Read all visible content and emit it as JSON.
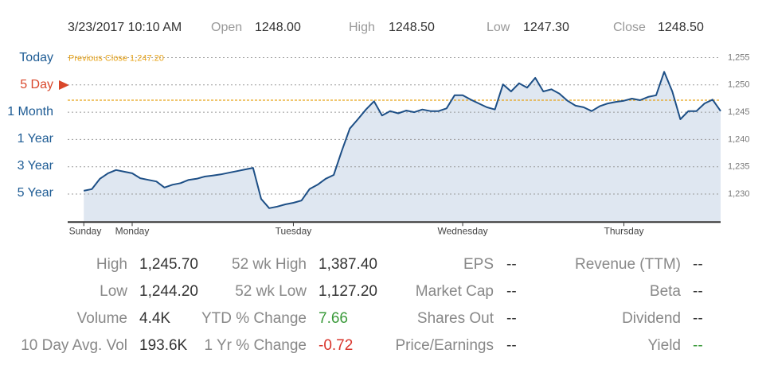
{
  "header": {
    "timestamp": "3/23/2017 10:10 AM",
    "fields": [
      {
        "label": "Open",
        "value": "1248.00"
      },
      {
        "label": "High",
        "value": "1248.50"
      },
      {
        "label": "Low",
        "value": "1247.30"
      },
      {
        "label": "Close",
        "value": "1248.50"
      }
    ]
  },
  "ranges": [
    "Today",
    "5 Day",
    "1 Month",
    "1 Year",
    "3 Year",
    "5 Year"
  ],
  "active_range": 1,
  "active_color": "#d9472b",
  "chart_data": {
    "type": "line",
    "color": "#1d4f86",
    "fill": "#dfe7f1",
    "x": [
      0,
      1,
      2,
      3,
      4,
      5,
      6,
      7,
      8,
      9,
      10,
      11,
      12,
      13,
      14,
      15,
      16,
      17,
      18,
      19,
      20,
      21,
      22,
      23,
      24,
      25,
      26,
      27,
      28,
      29,
      30,
      31,
      32,
      33,
      34,
      35,
      36,
      37,
      38,
      39,
      40,
      41,
      42,
      43,
      44,
      45,
      46,
      47,
      48,
      49,
      50,
      51,
      52,
      53,
      54,
      55,
      56,
      57,
      58,
      59,
      60,
      61,
      62,
      63,
      64,
      65,
      66,
      67,
      68,
      69,
      70,
      71,
      72,
      73,
      74,
      75,
      76,
      77,
      78,
      79
    ],
    "values": [
      1230.6,
      1230.9,
      1232.8,
      1233.8,
      1234.4,
      1234.1,
      1233.8,
      1232.9,
      1232.6,
      1232.3,
      1231.2,
      1231.7,
      1232.0,
      1232.6,
      1232.8,
      1233.2,
      1233.4,
      1233.6,
      1233.9,
      1234.2,
      1234.5,
      1234.8,
      1229.1,
      1227.4,
      1227.7,
      1228.1,
      1228.4,
      1228.8,
      1230.9,
      1231.7,
      1232.8,
      1233.5,
      1237.9,
      1242.0,
      1243.7,
      1245.5,
      1247.0,
      1244.4,
      1245.2,
      1244.8,
      1245.3,
      1245.0,
      1245.5,
      1245.2,
      1245.2,
      1245.7,
      1248.1,
      1248.1,
      1247.3,
      1246.6,
      1245.9,
      1245.5,
      1250.1,
      1248.8,
      1250.3,
      1249.5,
      1251.3,
      1248.8,
      1249.2,
      1248.4,
      1247.1,
      1246.2,
      1245.9,
      1245.2,
      1246.1,
      1246.6,
      1246.9,
      1247.1,
      1247.5,
      1247.2,
      1247.8,
      1248.1,
      1252.4,
      1248.8,
      1243.7,
      1245.2,
      1245.2,
      1246.6,
      1247.3,
      1245.2
    ],
    "xlim": [
      -2,
      79
    ],
    "xticks": [
      {
        "value": 0,
        "label": "Sunday"
      },
      {
        "value": 6,
        "label": "Monday"
      },
      {
        "value": 26,
        "label": "Tuesday"
      },
      {
        "value": 47,
        "label": "Wednesday"
      },
      {
        "value": 67,
        "label": "Thursday"
      }
    ],
    "ylim": [
      1225,
      1257
    ],
    "yticks": [
      {
        "value": 1230,
        "label": "1,230"
      },
      {
        "value": 1235,
        "label": "1,235"
      },
      {
        "value": 1240,
        "label": "1,240"
      },
      {
        "value": 1245,
        "label": "1,245"
      },
      {
        "value": 1250,
        "label": "1,250"
      },
      {
        "value": 1255,
        "label": "1,255"
      }
    ],
    "grid": true,
    "reference_line": {
      "label": "Previous Close 1,247.20",
      "value": 1247.2,
      "color": "#e8a317"
    }
  },
  "stats": [
    [
      {
        "label": "High",
        "value": "1,245.70"
      },
      {
        "label": "Low",
        "value": "1,244.20"
      },
      {
        "label": "Volume",
        "value": "4.4K"
      },
      {
        "label": "10 Day Avg. Vol",
        "value": "193.6K"
      }
    ],
    [
      {
        "label": "52 wk High",
        "value": "1,387.40"
      },
      {
        "label": "52 wk Low",
        "value": "1,127.20"
      },
      {
        "label": "YTD % Change",
        "value": "7.66",
        "color": "#3a9a3a"
      },
      {
        "label": "1 Yr % Change",
        "value": "-0.72",
        "color": "#d9342b"
      }
    ],
    [
      {
        "label": "EPS",
        "value": "--"
      },
      {
        "label": "Market Cap",
        "value": "--"
      },
      {
        "label": "Shares Out",
        "value": "--"
      },
      {
        "label": "Price/Earnings",
        "value": "--"
      }
    ],
    [
      {
        "label": "Revenue (TTM)",
        "value": "--"
      },
      {
        "label": "Beta",
        "value": "--"
      },
      {
        "label": "Dividend",
        "value": "--"
      },
      {
        "label": "Yield",
        "value": "--",
        "color": "#3a9a3a"
      }
    ]
  ]
}
